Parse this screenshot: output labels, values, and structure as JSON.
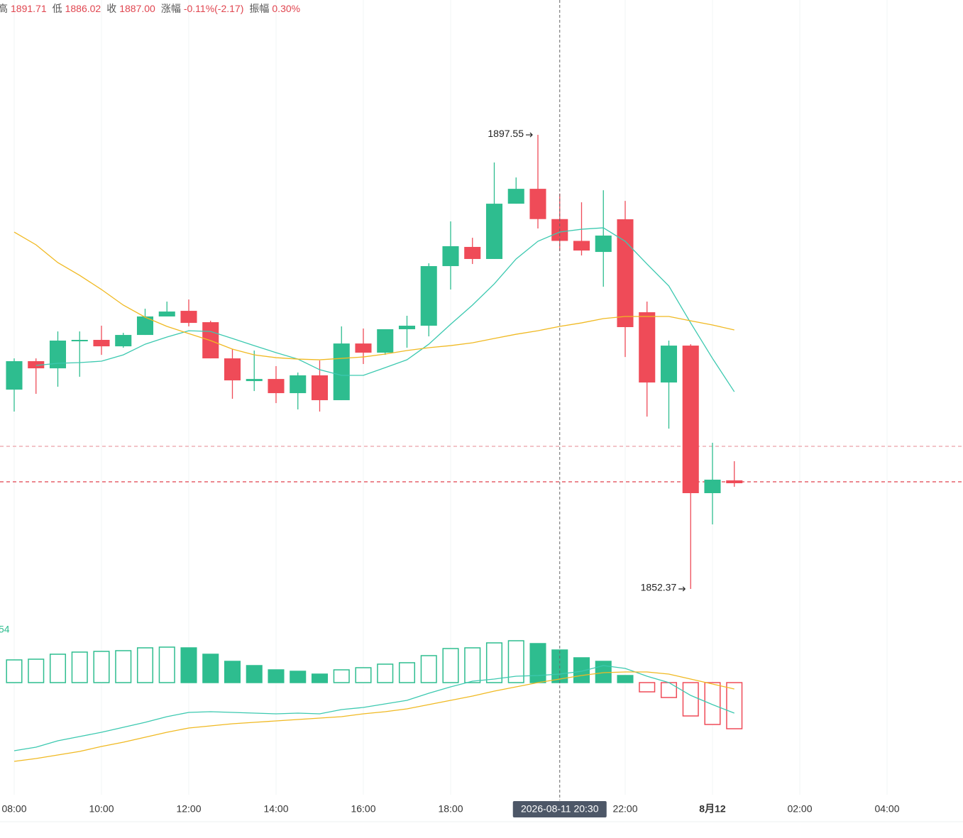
{
  "chart_data": {
    "type": "candlestick",
    "header": [
      {
        "label": "高",
        "value": "1891.71"
      },
      {
        "label": "低",
        "value": "1886.02"
      },
      {
        "label": "收",
        "value": "1887.00"
      },
      {
        "label": "涨幅",
        "value": "-0.11%(-2.17)"
      },
      {
        "label": "振幅",
        "value": "0.30%"
      }
    ],
    "x": [
      8,
      8.5,
      9,
      9.5,
      10,
      10.5,
      11,
      11.5,
      12,
      12.5,
      13,
      13.5,
      14,
      14.5,
      15,
      15.5,
      16,
      16.5,
      17,
      17.5,
      18,
      18.5,
      19,
      19.5,
      20,
      20.5,
      21,
      21.5,
      22,
      22.5,
      23,
      23.5,
      24,
      24.5
    ],
    "open": [
      1872.2,
      1875.03,
      1874.32,
      1877.01,
      1877.15,
      1876.51,
      1877.64,
      1879.48,
      1880.04,
      1878.91,
      1875.31,
      1873.05,
      1873.26,
      1871.85,
      1873.62,
      1871.15,
      1876.79,
      1875.88,
      1878.21,
      1878.56,
      1884.49,
      1886.4,
      1885.2,
      1890.7,
      1892.18,
      1889.17,
      1887.0,
      1885.9,
      1889.15,
      1879.9,
      1872.91,
      1876.58,
      1861.9,
      1863.17
    ],
    "high": [
      1875.31,
      1875.31,
      1877.99,
      1877.99,
      1878.56,
      1877.85,
      1880.25,
      1880.96,
      1881.17,
      1879.05,
      1876.23,
      1876.09,
      1874.54,
      1873.9,
      1875.1,
      1878.49,
      1878.28,
      1878.21,
      1879.55,
      1884.77,
      1888.94,
      1887.31,
      1894.8,
      1893.31,
      1897.55,
      1891.71,
      1890.84,
      1892.04,
      1890.98,
      1880.96,
      1877.08,
      1876.72,
      1866.91,
      1865.08
    ],
    "low": [
      1870.02,
      1871.78,
      1872.49,
      1873.48,
      1875.66,
      1876.37,
      1877.64,
      1879.48,
      1878.49,
      1875.31,
      1871.29,
      1872.06,
      1870.86,
      1870.23,
      1870.02,
      1871.15,
      1874.75,
      1875.66,
      1876.37,
      1877.5,
      1882.16,
      1884.7,
      1885.2,
      1890.7,
      1888.23,
      1886.02,
      1885.55,
      1882.44,
      1875.45,
      1869.52,
      1868.32,
      1852.37,
      1858.79,
      1862.53
    ],
    "close": [
      1875.03,
      1874.32,
      1877.08,
      1877.15,
      1876.51,
      1877.64,
      1879.48,
      1879.97,
      1878.84,
      1875.31,
      1873.12,
      1873.26,
      1871.85,
      1873.62,
      1871.15,
      1876.79,
      1875.88,
      1878.21,
      1878.56,
      1884.49,
      1886.47,
      1885.2,
      1890.7,
      1892.18,
      1889.17,
      1887.0,
      1886.04,
      1887.53,
      1878.42,
      1872.91,
      1876.58,
      1861.9,
      1863.24,
      1862.89
    ],
    "up_color": "#2ebd8f",
    "down_color": "#ef4b58",
    "overlays": [
      {
        "color": "#3cc9b0",
        "values": [
          null,
          1874.61,
          1874.82,
          1874.89,
          1875.03,
          1875.66,
          1876.72,
          1877.43,
          1878.06,
          1877.99,
          1877.29,
          1876.58,
          1875.88,
          1875.24,
          1874.18,
          1873.62,
          1873.62,
          1874.39,
          1875.17,
          1876.72,
          1878.7,
          1880.61,
          1882.72,
          1885.2,
          1886.96,
          1887.88,
          1888.16,
          1888.3,
          1886.96,
          1884.7,
          1882.51,
          1878.84,
          1875.31,
          1871.99
        ]
      },
      {
        "color": "#f0b922",
        "values": [
          1887.88,
          1886.61,
          1884.84,
          1883.57,
          1882.16,
          1880.61,
          1879.41,
          1878.49,
          1877.78,
          1877.08,
          1876.23,
          1875.66,
          1875.38,
          1875.24,
          1875.17,
          1875.31,
          1875.45,
          1875.74,
          1876.09,
          1876.37,
          1876.58,
          1876.86,
          1877.29,
          1877.71,
          1878.06,
          1878.49,
          1878.84,
          1879.27,
          1879.48,
          1879.48,
          1879.48,
          1879.05,
          1878.63,
          1878.14
        ]
      }
    ],
    "ref_lines": [
      {
        "value": 1866.56,
        "color": "#eaa0a6"
      },
      {
        "value": 1863.03,
        "color": "#e0404e"
      }
    ],
    "xlim": [
      7.675,
      29.74
    ],
    "ylim": [
      1850.25,
      1908.85
    ],
    "xticks": [
      {
        "value": 8,
        "label": "08:00"
      },
      {
        "value": 10,
        "label": "10:00"
      },
      {
        "value": 12,
        "label": "12:00"
      },
      {
        "value": 14,
        "label": "14:00"
      },
      {
        "value": 16,
        "label": "16:00"
      },
      {
        "value": 18,
        "label": "18:00"
      },
      {
        "value": 22,
        "label": "22:00"
      },
      {
        "value": 24,
        "label": "8月12"
      },
      {
        "value": 26,
        "label": "02:00"
      },
      {
        "value": 28,
        "label": "04:00"
      }
    ],
    "grid": true,
    "crosshair": {
      "x": 20.5,
      "label": "2026-08-11 20:30"
    },
    "macd": {
      "label": "54",
      "values": [
        3.2,
        3.3,
        4.0,
        4.3,
        4.4,
        4.5,
        4.9,
        5.0,
        4.9,
        4.0,
        3.0,
        2.4,
        1.8,
        1.6,
        1.2,
        1.8,
        2.1,
        2.6,
        2.8,
        3.8,
        4.8,
        4.9,
        5.6,
        5.9,
        5.5,
        4.6,
        3.5,
        3.0,
        1.0,
        -1.3,
        -2.1,
        -4.7,
        -5.9,
        -6.5
      ],
      "ylim": [
        -13.8,
        8.2
      ],
      "lines": [
        {
          "color": "#3cc9b0",
          "values": [
            -9.6,
            -9.1,
            -8.2,
            -7.6,
            -7.0,
            -6.3,
            -5.6,
            -4.8,
            -4.2,
            -4.1,
            -4.2,
            -4.3,
            -4.4,
            -4.3,
            -4.4,
            -3.8,
            -3.5,
            -3.0,
            -2.5,
            -1.5,
            -0.6,
            0.2,
            0.5,
            0.9,
            1.0,
            1.2,
            1.6,
            2.4,
            2.0,
            0.9,
            0.0,
            -1.8,
            -3.1,
            -4.3
          ]
        },
        {
          "color": "#f0b922",
          "values": [
            -11.1,
            -10.7,
            -10.2,
            -9.7,
            -9.0,
            -8.4,
            -7.7,
            -7.0,
            -6.4,
            -6.1,
            -5.8,
            -5.6,
            -5.4,
            -5.2,
            -5.0,
            -4.8,
            -4.4,
            -4.1,
            -3.7,
            -3.1,
            -2.5,
            -1.9,
            -1.2,
            -0.6,
            0.0,
            0.5,
            1.0,
            1.4,
            1.5,
            1.5,
            1.2,
            0.5,
            -0.2,
            -0.9
          ]
        }
      ]
    }
  }
}
